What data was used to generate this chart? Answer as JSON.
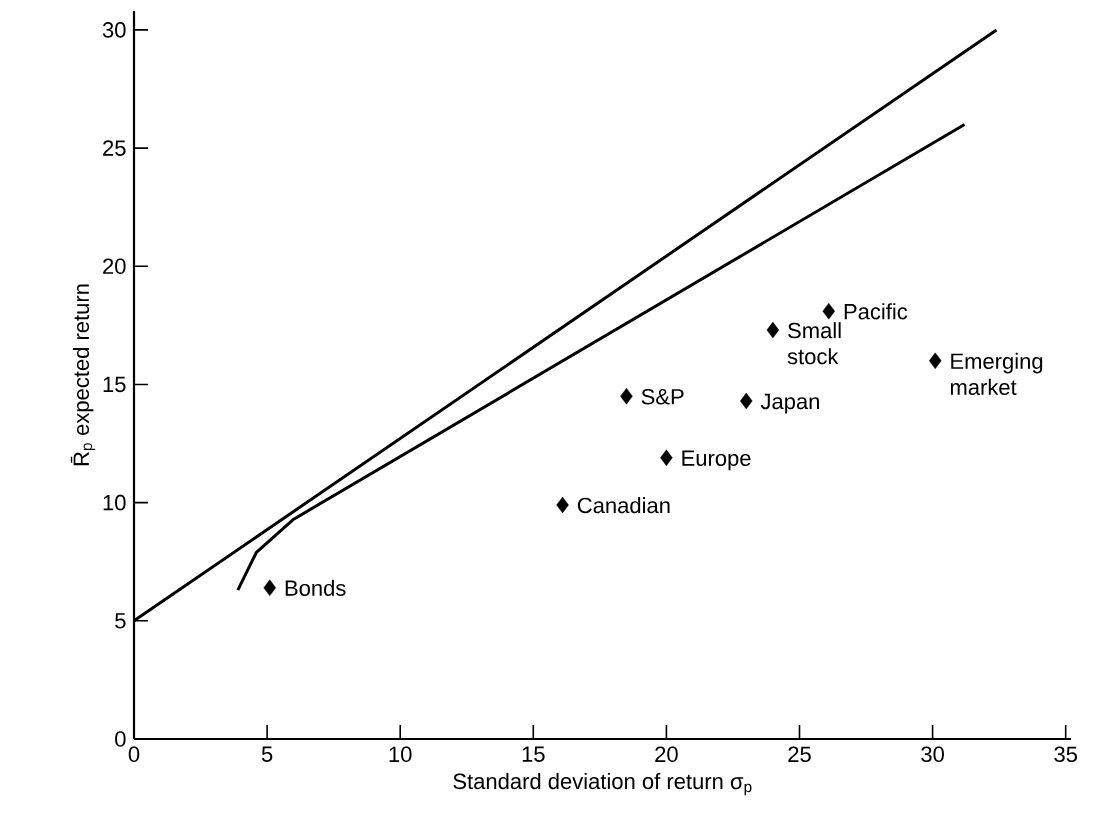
{
  "chart_data": {
    "type": "scatter",
    "xlabel": "Standard deviation of return σ$_{p}$",
    "ylabel": "R̄$_{p}$ expected return",
    "xlim": [
      0,
      35.2
    ],
    "ylim": [
      0,
      30.8
    ],
    "xticks": [
      0,
      5,
      10,
      15,
      20,
      25,
      30,
      35
    ],
    "yticks": [
      0,
      5,
      10,
      15,
      20,
      25,
      30
    ],
    "series": [
      {
        "type": "scatter",
        "color": "#000000",
        "marker": "diamond",
        "x": [
          5.1,
          16.1,
          18.5,
          20.0,
          23.0,
          24.0,
          26.1,
          30.1
        ],
        "values": [
          6.4,
          9.9,
          14.5,
          11.9,
          14.3,
          17.3,
          18.1,
          16.0
        ]
      },
      {
        "type": "line",
        "color": "#000000",
        "marker": "none",
        "line_style": "solid",
        "x": [
          0,
          32.4
        ],
        "values": [
          5,
          30
        ]
      },
      {
        "type": "line",
        "color": "#000000",
        "marker": "none",
        "line_style": "solid",
        "x": [
          3.9,
          4.6,
          6.0,
          31.2
        ],
        "values": [
          6.3,
          7.9,
          9.3,
          26.0
        ]
      }
    ],
    "annotations": [
      {
        "text": "Bonds",
        "x": 5.1,
        "y": 6.4
      },
      {
        "text": "Canadian",
        "x": 16.1,
        "y": 9.9
      },
      {
        "text": "S&P",
        "x": 18.5,
        "y": 14.5
      },
      {
        "text": "Europe",
        "x": 20.0,
        "y": 11.9
      },
      {
        "text": "Japan",
        "x": 23.0,
        "y": 14.3
      },
      {
        "text": "Small stock",
        "x": 24.0,
        "y": 17.3
      },
      {
        "text": "Pacific",
        "x": 26.1,
        "y": 18.1
      },
      {
        "text": "Emerging market",
        "x": 30.1,
        "y": 16.0
      }
    ]
  }
}
